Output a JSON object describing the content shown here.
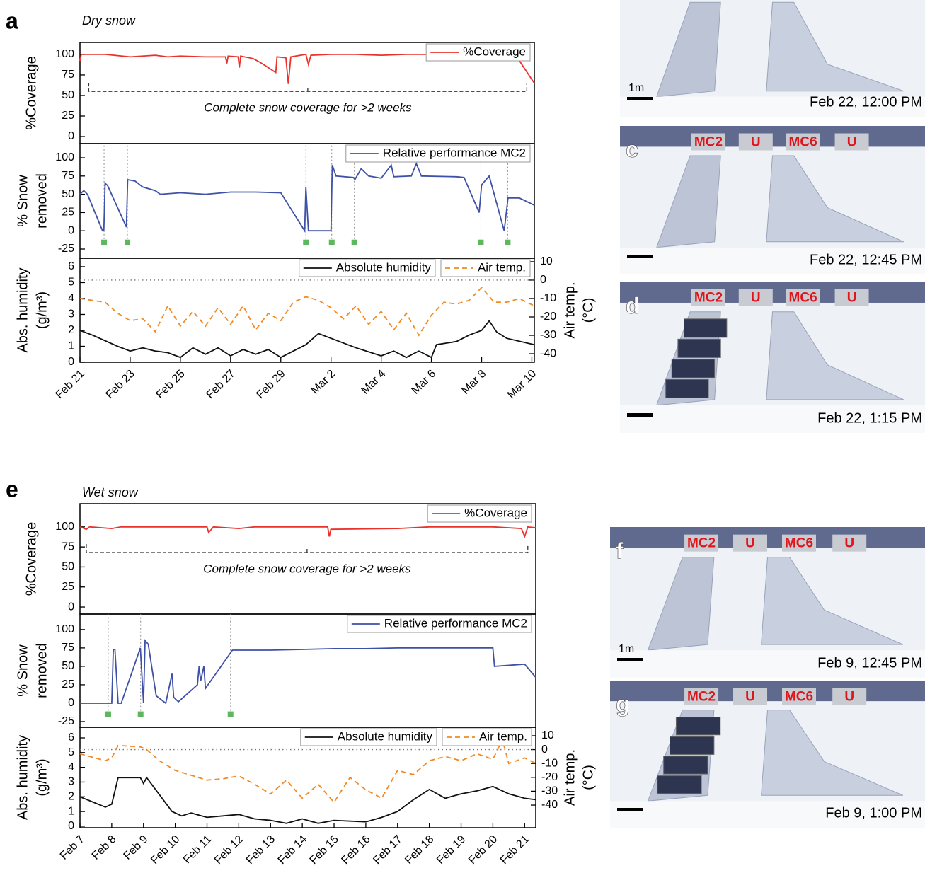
{
  "panels": [
    {
      "letter": "a",
      "title": "Dry snow"
    },
    {
      "letter": "e",
      "title": "Wet snow"
    }
  ],
  "chart_data": [
    {
      "type": "line",
      "ylabel": [
        "%Coverage"
      ],
      "xlim": [
        0,
        18.1
      ],
      "ylim": [
        -8.6,
        114.6
      ],
      "yticks": [
        0,
        25,
        50,
        75,
        100
      ],
      "legend": "upper right",
      "series": [
        {
          "name": "%Coverage",
          "color": "#e8322b",
          "x": [
            0,
            0.05,
            1,
            2,
            3,
            3.5,
            4,
            5,
            5.8,
            5.85,
            5.9,
            6.3,
            6.35,
            6.4,
            6.9,
            7.2,
            7.8,
            7.85,
            8.2,
            8.3,
            8.4,
            9,
            9.1,
            9.2,
            10,
            11,
            12,
            13,
            14,
            15,
            16,
            17,
            17.4,
            18.1
          ],
          "values": [
            92,
            100,
            100,
            97,
            99,
            97,
            98,
            97,
            97,
            89,
            98,
            97,
            84,
            98,
            95,
            90,
            78,
            97,
            96,
            64,
            97,
            100,
            88,
            99,
            100,
            100,
            99,
            100,
            100,
            100,
            100,
            100,
            97,
            65
          ]
        }
      ],
      "annotation": {
        "text": "Complete snow coverage for >2 weeks",
        "x": [
          0.35,
          17.8
        ],
        "y": 55
      }
    },
    {
      "type": "line",
      "ylabel": [
        "% Snow",
        "removed"
      ],
      "xlim": [
        0,
        18.1
      ],
      "ylim": [
        -37.6,
        119.4
      ],
      "yticks": [
        -25,
        0,
        25,
        50,
        75,
        100
      ],
      "legend": "upper right",
      "series": [
        {
          "name": "Relative performance MC2",
          "color": "#3f51a6",
          "x": [
            0,
            0.15,
            0.3,
            0.9,
            0.95,
            1.0,
            1.1,
            1.85,
            1.9,
            2.2,
            2.5,
            3.0,
            3.2,
            4,
            5,
            6,
            7,
            8,
            8.95,
            9.0,
            9.1,
            10.0,
            10.05,
            10.2,
            10.9,
            10.95,
            11.2,
            11.5,
            12.0,
            12.4,
            12.5,
            13.2,
            13.4,
            13.6,
            15,
            15.3,
            15.9,
            16.0,
            16.3,
            16.9,
            17.05,
            17.5,
            18.1
          ],
          "values": [
            50,
            55,
            50,
            0,
            0,
            65,
            62,
            5,
            70,
            68,
            60,
            55,
            50,
            52,
            50,
            53,
            53,
            52,
            0,
            60,
            0,
            0,
            90,
            75,
            73,
            70,
            85,
            75,
            72,
            90,
            74,
            75,
            92,
            75,
            74,
            73,
            25,
            63,
            75,
            0,
            45,
            45,
            35
          ]
        }
      ],
      "markers": {
        "color": "#5cb85c",
        "x": [
          0.96,
          1.89,
          9.0,
          10.03,
          10.93,
          15.97,
          17.04
        ],
        "values": [
          -16,
          -16,
          -16,
          -16,
          -16,
          -16,
          -16
        ]
      }
    },
    {
      "type": "line",
      "ylabel": [
        "Abs. humidity",
        "(g/m³)"
      ],
      "y2label": [
        "Air temp.",
        "(°C)"
      ],
      "xlim": [
        0,
        18.1
      ],
      "ylim": [
        0,
        6.53
      ],
      "yticks": [
        0,
        1,
        2,
        3,
        4,
        5,
        6
      ],
      "y2lim": [
        -44.6,
        11.9
      ],
      "y2ticks": [
        -40,
        -30,
        -20,
        -10,
        0,
        10
      ],
      "legend": "upper right",
      "hline": {
        "axis": "y2",
        "value": 0
      },
      "xticks": [
        {
          "value": 0,
          "label": "Feb 21"
        },
        {
          "value": 2,
          "label": "Feb 23"
        },
        {
          "value": 4,
          "label": "Feb 25"
        },
        {
          "value": 6,
          "label": "Feb 27"
        },
        {
          "value": 8,
          "label": "Feb 29"
        },
        {
          "value": 10,
          "label": "Mar 2"
        },
        {
          "value": 12,
          "label": "Mar 4"
        },
        {
          "value": 14,
          "label": "Mar 6"
        },
        {
          "value": 16,
          "label": "Mar 8"
        },
        {
          "value": 18,
          "label": "Mar 10"
        }
      ],
      "series": [
        {
          "name": "Absolute humidity",
          "color": "#111111",
          "x": [
            0,
            0.5,
            1.5,
            2,
            2.5,
            3,
            3.5,
            4,
            4.5,
            5,
            5.5,
            6,
            6.5,
            7,
            7.5,
            8,
            9,
            9.5,
            10,
            11,
            12,
            12.5,
            13,
            13.5,
            14,
            14.2,
            15,
            15.5,
            16,
            16.3,
            16.6,
            17,
            18.1
          ],
          "values": [
            2.0,
            1.7,
            1.0,
            0.7,
            0.9,
            0.7,
            0.6,
            0.3,
            0.9,
            0.5,
            0.9,
            0.4,
            0.8,
            0.5,
            0.8,
            0.3,
            1.1,
            1.8,
            1.5,
            0.9,
            0.4,
            0.7,
            0.3,
            0.7,
            0.3,
            1.1,
            1.3,
            1.7,
            2.0,
            2.6,
            1.9,
            1.5,
            1.1
          ]
        },
        {
          "name": "Air temp.",
          "color": "#f08a24",
          "axis": "y2",
          "dash": true,
          "x": [
            0,
            1,
            1.5,
            2,
            2.5,
            3,
            3.5,
            4,
            4.5,
            5,
            5.5,
            6,
            6.5,
            7,
            7.5,
            8,
            8.5,
            9,
            9.5,
            10,
            10.5,
            11,
            11.5,
            12,
            12.5,
            13,
            13.5,
            14,
            14.5,
            15,
            15.5,
            16,
            16.5,
            17,
            17.5,
            18.1
          ],
          "values": [
            -10,
            -12,
            -18,
            -22,
            -21,
            -28,
            -14,
            -25,
            -17,
            -25,
            -15,
            -24,
            -14,
            -27,
            -18,
            -22,
            -12,
            -9,
            -11,
            -15,
            -21,
            -14,
            -24,
            -17,
            -27,
            -18,
            -30,
            -19,
            -12,
            -13,
            -11,
            -4,
            -12,
            -12,
            -10,
            -14
          ]
        }
      ]
    },
    {
      "type": "line",
      "ylabel": [
        "%Coverage"
      ],
      "xlim": [
        0,
        14.35
      ],
      "ylim": [
        -8.8,
        129
      ],
      "yticks": [
        0,
        25,
        50,
        75,
        100
      ],
      "legend": "upper right",
      "series": [
        {
          "name": "%Coverage",
          "color": "#e8322b",
          "x": [
            0,
            0.2,
            0.3,
            1,
            1.3,
            4,
            4.05,
            4.2,
            5,
            5.5,
            7.8,
            7.85,
            7.9,
            10,
            11,
            13,
            13.9,
            14.0,
            14.1,
            14.35
          ],
          "values": [
            100,
            97,
            100,
            98,
            100,
            100,
            93,
            100,
            98,
            100,
            100,
            88,
            97,
            98,
            100,
            100,
            98,
            88,
            100,
            99
          ]
        }
      ],
      "annotation": {
        "text": "Complete snow coverage for >2 weeks",
        "x": [
          0.2,
          14.1
        ],
        "y": 68
      }
    },
    {
      "type": "line",
      "ylabel": [
        "% Snow",
        "removed"
      ],
      "xlim": [
        0,
        14.35
      ],
      "ylim": [
        -32.7,
        121
      ],
      "yticks": [
        -25,
        0,
        25,
        50,
        75,
        100
      ],
      "legend": "upper right",
      "series": [
        {
          "name": "Relative performance MC2",
          "color": "#3f51a6",
          "x": [
            0,
            1.0,
            1.05,
            1.1,
            1.2,
            1.3,
            1.9,
            2.0,
            2.05,
            2.15,
            2.4,
            2.7,
            2.9,
            2.95,
            3.1,
            3.7,
            3.75,
            3.8,
            3.9,
            3.95,
            4.8,
            6,
            7,
            8,
            9,
            10,
            12,
            13,
            13.05,
            14,
            14.35
          ],
          "values": [
            0,
            0,
            73,
            73,
            0,
            0,
            75,
            0,
            85,
            80,
            10,
            0,
            40,
            8,
            2,
            25,
            50,
            30,
            50,
            20,
            72,
            72,
            73,
            74,
            74,
            75,
            75,
            75,
            50,
            53,
            35
          ]
        }
      ],
      "markers": {
        "color": "#5cb85c",
        "x": [
          0.89,
          1.91,
          4.74
        ],
        "values": [
          -15,
          -15,
          -15
        ]
      }
    },
    {
      "type": "line",
      "ylabel": [
        "Abs. humidity",
        "(g/m³)"
      ],
      "y2label": [
        "Air temp.",
        "(°C)"
      ],
      "xlim": [
        0,
        14.35
      ],
      "ylim": [
        -0.1,
        6.72
      ],
      "yticks": [
        0,
        1,
        2,
        3,
        4,
        5,
        6
      ],
      "y2lim": [
        -56.3,
        16.1
      ],
      "y2ticks": [
        -40,
        -30,
        -20,
        -10,
        0,
        10
      ],
      "legend": "upper right",
      "hline": {
        "axis": "y2",
        "value": 0
      },
      "xticks": [
        {
          "value": 0,
          "label": "Feb 7"
        },
        {
          "value": 1,
          "label": "Feb 8"
        },
        {
          "value": 2,
          "label": "Feb 9"
        },
        {
          "value": 3,
          "label": "Feb 10"
        },
        {
          "value": 4,
          "label": "Feb 11"
        },
        {
          "value": 5,
          "label": "Feb 12"
        },
        {
          "value": 6,
          "label": "Feb 13"
        },
        {
          "value": 7,
          "label": "Feb 14"
        },
        {
          "value": 8,
          "label": "Feb 15"
        },
        {
          "value": 9,
          "label": "Feb 16"
        },
        {
          "value": 10,
          "label": "Feb 17"
        },
        {
          "value": 11,
          "label": "Feb 18"
        },
        {
          "value": 12,
          "label": "Feb 19"
        },
        {
          "value": 13,
          "label": "Feb 20"
        },
        {
          "value": 14,
          "label": "Feb 21"
        }
      ],
      "series": [
        {
          "name": "Absolute humidity",
          "color": "#111111",
          "x": [
            0,
            0.8,
            1,
            1.2,
            1.9,
            2.0,
            2.1,
            2.9,
            3.2,
            3.5,
            4,
            4.5,
            5,
            5.5,
            6,
            6.5,
            7,
            7.5,
            8,
            9,
            9.5,
            10,
            10.5,
            11,
            11.5,
            12,
            12.5,
            13,
            13.5,
            14,
            14.35
          ],
          "values": [
            2.0,
            1.3,
            1.5,
            3.3,
            3.3,
            2.9,
            3.3,
            1.0,
            0.7,
            0.9,
            0.6,
            0.7,
            0.8,
            0.5,
            0.4,
            0.2,
            0.5,
            0.2,
            0.4,
            0.3,
            0.6,
            1.0,
            1.8,
            2.5,
            1.9,
            2.2,
            2.4,
            2.7,
            2.2,
            1.9,
            1.8
          ]
        },
        {
          "name": "Air temp.",
          "color": "#f08a24",
          "axis": "y2",
          "dash": true,
          "x": [
            0,
            0.8,
            1.0,
            1.2,
            1.9,
            2.1,
            2.5,
            3,
            4,
            4.5,
            5,
            5.5,
            6,
            6.5,
            7,
            7.5,
            8,
            8.5,
            9,
            9.5,
            10,
            10.5,
            11,
            11.5,
            12,
            12.5,
            13,
            13.3,
            13.5,
            14,
            14.35
          ],
          "values": [
            -3,
            -8,
            -6,
            3,
            2,
            0,
            -8,
            -15,
            -22,
            -21,
            -19,
            -25,
            -32,
            -22,
            -35,
            -25,
            -38,
            -20,
            -29,
            -35,
            -15,
            -18,
            -8,
            -5,
            -8,
            -3,
            -7,
            7,
            -10,
            -6,
            -10
          ]
        }
      ]
    }
  ],
  "photos": [
    {
      "scale": "1m",
      "caption": "Feb 22, 12:00 PM"
    },
    {
      "letter": "c",
      "labels": [
        "MC2",
        "U",
        "MC6",
        "U"
      ],
      "caption": "Feb 22, 12:45 PM"
    },
    {
      "letter": "d",
      "labels": [
        "MC2",
        "U",
        "MC6",
        "U"
      ],
      "caption": "Feb 22, 1:15 PM"
    },
    {
      "letter": "f",
      "labels": [
        "MC2",
        "U",
        "MC6",
        "U"
      ],
      "scale": "1m",
      "caption": "Feb 9, 12:45 PM"
    },
    {
      "letter": "g",
      "labels": [
        "MC2",
        "U",
        "MC6",
        "U"
      ],
      "caption": "Feb 9, 1:00 PM"
    }
  ]
}
